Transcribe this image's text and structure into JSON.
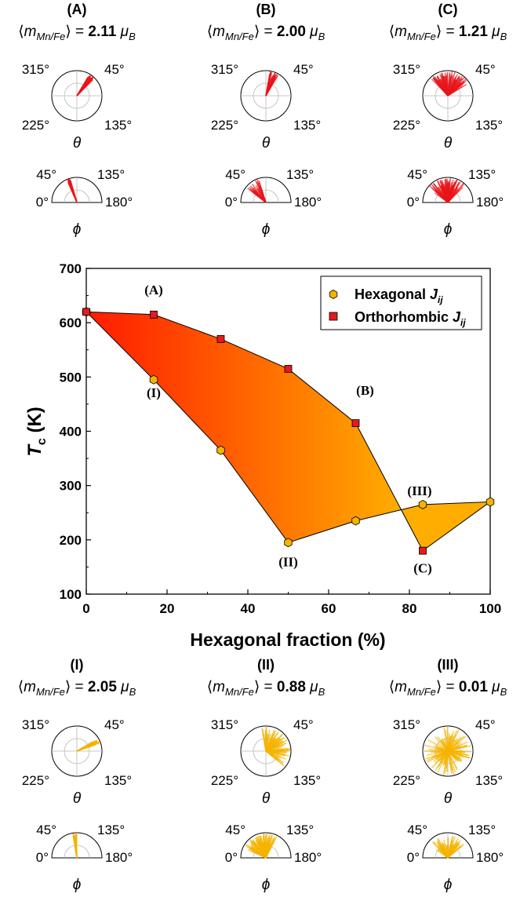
{
  "colors": {
    "red": "#e8141a",
    "hex_marker": "#f5b300",
    "ortho_marker": "#e41a1c",
    "fill_left": "#ff1a00",
    "fill_right": "#ffad00"
  },
  "labels": {
    "theta": "θ",
    "phi": "ϕ",
    "theta_ticks": [
      "315°",
      "45°",
      "225°",
      "135°"
    ],
    "phi_ticks": [
      "45°",
      "135°",
      "0°",
      "180°"
    ]
  },
  "panels_top": [
    {
      "id": "(A)",
      "moment": "2.11",
      "unit": "μB"
    },
    {
      "id": "(B)",
      "moment": "2.00",
      "unit": "μB"
    },
    {
      "id": "(C)",
      "moment": "1.21",
      "unit": "μB"
    }
  ],
  "panels_bottom": [
    {
      "id": "(I)",
      "moment": "2.05",
      "unit": "μB"
    },
    {
      "id": "(II)",
      "moment": "0.88",
      "unit": "μB"
    },
    {
      "id": "(III)",
      "moment": "0.01",
      "unit": "μB"
    }
  ],
  "moment_label": "⟨mMn/Fe⟩ =",
  "chart_data": {
    "type": "scatter",
    "xlabel": "Hexagonal fraction (%)",
    "ylabel": "Tc (K)",
    "xlim": [
      0,
      100
    ],
    "ylim": [
      100,
      700
    ],
    "xticks": [
      0,
      20,
      40,
      60,
      80,
      100
    ],
    "yticks": [
      100,
      200,
      300,
      400,
      500,
      600,
      700
    ],
    "legend_position": "top-right",
    "series": [
      {
        "name": "Hexagonal Jij",
        "marker": "hexagon",
        "x": [
          0,
          16.7,
          33.3,
          50,
          66.7,
          83.3,
          100
        ],
        "y": [
          620,
          495,
          365,
          195,
          235,
          265,
          270
        ]
      },
      {
        "name": "Orthorhombic Jij",
        "marker": "square",
        "x": [
          0,
          16.7,
          33.3,
          50,
          66.7,
          83.3
        ],
        "y": [
          620,
          615,
          570,
          515,
          415,
          180
        ]
      }
    ],
    "annotations": [
      {
        "text": "(A)",
        "x": 16.7,
        "y": 615
      },
      {
        "text": "(B)",
        "x": 66.7,
        "y": 415
      },
      {
        "text": "(C)",
        "x": 83.3,
        "y": 180
      },
      {
        "text": "(I)",
        "x": 16.7,
        "y": 495
      },
      {
        "text": "(II)",
        "x": 50,
        "y": 195
      },
      {
        "text": "(III)",
        "x": 83.3,
        "y": 265
      }
    ]
  }
}
